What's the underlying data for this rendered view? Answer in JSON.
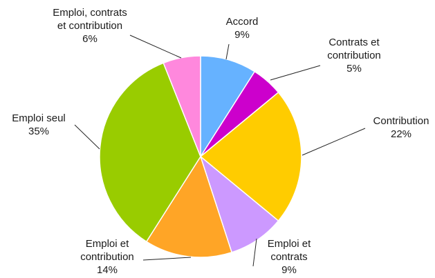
{
  "chart_data": {
    "type": "pie",
    "start_angle_deg": 0,
    "direction": "clockwise",
    "slices": [
      {
        "label_lines": [
          "Accord"
        ],
        "value": 9,
        "pct_text": "9%",
        "color": "#66b2ff"
      },
      {
        "label_lines": [
          "Contrats et",
          "contribution"
        ],
        "value": 5,
        "pct_text": "5%",
        "color": "#cc00cc"
      },
      {
        "label_lines": [
          "Contribution"
        ],
        "value": 22,
        "pct_text": "22%",
        "color": "#ffcc00"
      },
      {
        "label_lines": [
          "Emploi et",
          "contrats"
        ],
        "value": 9,
        "pct_text": "9%",
        "color": "#cc99ff"
      },
      {
        "label_lines": [
          "Emploi et",
          "contribution"
        ],
        "value": 14,
        "pct_text": "14%",
        "color": "#ffa526"
      },
      {
        "label_lines": [
          "Emploi seul"
        ],
        "value": 35,
        "pct_text": "35%",
        "color": "#99cc00"
      },
      {
        "label_lines": [
          "Emploi, contrats",
          "et contribution"
        ],
        "value": 6,
        "pct_text": "6%",
        "color": "#ff88dd"
      }
    ]
  }
}
